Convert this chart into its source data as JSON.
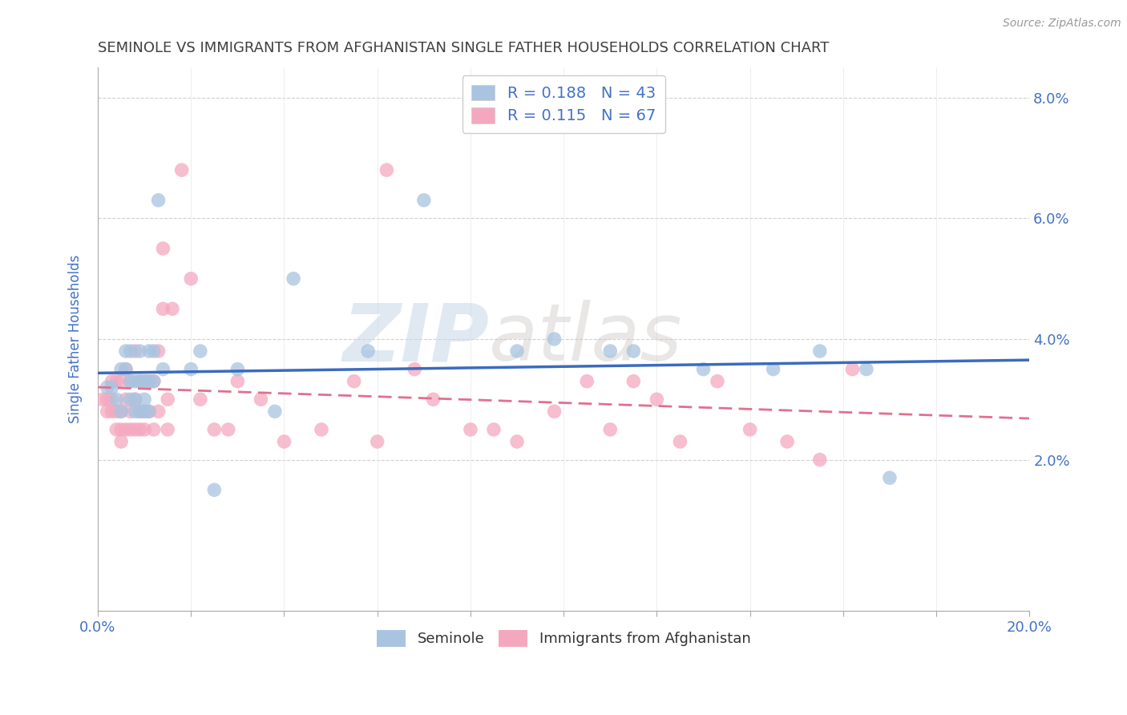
{
  "title": "SEMINOLE VS IMMIGRANTS FROM AFGHANISTAN SINGLE FATHER HOUSEHOLDS CORRELATION CHART",
  "source": "Source: ZipAtlas.com",
  "ylabel": "Single Father Households",
  "xlim": [
    0.0,
    0.2
  ],
  "ylim": [
    -0.005,
    0.085
  ],
  "x_ticks": [
    0.0,
    0.02,
    0.04,
    0.06,
    0.08,
    0.1,
    0.12,
    0.14,
    0.16,
    0.18,
    0.2
  ],
  "y_ticks": [
    0.0,
    0.02,
    0.04,
    0.06,
    0.08
  ],
  "blue_R": 0.188,
  "blue_N": 43,
  "pink_R": 0.115,
  "pink_N": 67,
  "blue_color": "#a8c4e0",
  "pink_color": "#f4a8c0",
  "blue_line_color": "#3a6bbf",
  "pink_line_color": "#e07090",
  "legend_blue_label": "Seminole",
  "legend_pink_label": "Immigrants from Afghanistan",
  "watermark_zip": "ZIP",
  "watermark_atlas": "atlas",
  "background_color": "#ffffff",
  "grid_color": "#d0d0d0",
  "title_color": "#404040",
  "tick_label_color": "#4472c4",
  "blue_scatter_x": [
    0.002,
    0.003,
    0.004,
    0.005,
    0.005,
    0.006,
    0.006,
    0.007,
    0.007,
    0.007,
    0.008,
    0.008,
    0.008,
    0.009,
    0.009,
    0.009,
    0.01,
    0.01,
    0.01,
    0.011,
    0.011,
    0.011,
    0.012,
    0.012,
    0.013,
    0.014,
    0.02,
    0.022,
    0.025,
    0.03,
    0.038,
    0.042,
    0.058,
    0.07,
    0.09,
    0.098,
    0.11,
    0.115,
    0.13,
    0.145,
    0.155,
    0.165,
    0.17
  ],
  "blue_scatter_y": [
    0.032,
    0.032,
    0.03,
    0.028,
    0.035,
    0.035,
    0.038,
    0.03,
    0.033,
    0.038,
    0.028,
    0.03,
    0.033,
    0.028,
    0.033,
    0.038,
    0.028,
    0.03,
    0.033,
    0.028,
    0.033,
    0.038,
    0.033,
    0.038,
    0.063,
    0.035,
    0.035,
    0.038,
    0.015,
    0.035,
    0.028,
    0.05,
    0.038,
    0.063,
    0.038,
    0.04,
    0.038,
    0.038,
    0.035,
    0.035,
    0.038,
    0.035,
    0.017
  ],
  "pink_scatter_x": [
    0.001,
    0.002,
    0.002,
    0.003,
    0.003,
    0.003,
    0.004,
    0.004,
    0.004,
    0.005,
    0.005,
    0.005,
    0.005,
    0.006,
    0.006,
    0.006,
    0.007,
    0.007,
    0.007,
    0.008,
    0.008,
    0.008,
    0.009,
    0.009,
    0.009,
    0.01,
    0.01,
    0.01,
    0.011,
    0.011,
    0.012,
    0.012,
    0.013,
    0.013,
    0.014,
    0.014,
    0.015,
    0.015,
    0.016,
    0.018,
    0.02,
    0.022,
    0.025,
    0.028,
    0.03,
    0.035,
    0.04,
    0.048,
    0.055,
    0.06,
    0.062,
    0.068,
    0.072,
    0.08,
    0.085,
    0.09,
    0.098,
    0.105,
    0.11,
    0.115,
    0.12,
    0.125,
    0.133,
    0.14,
    0.148,
    0.155,
    0.162
  ],
  "pink_scatter_y": [
    0.03,
    0.028,
    0.03,
    0.028,
    0.03,
    0.033,
    0.025,
    0.028,
    0.033,
    0.023,
    0.025,
    0.028,
    0.033,
    0.025,
    0.03,
    0.035,
    0.025,
    0.028,
    0.033,
    0.025,
    0.03,
    0.038,
    0.025,
    0.028,
    0.033,
    0.025,
    0.028,
    0.033,
    0.028,
    0.033,
    0.025,
    0.033,
    0.028,
    0.038,
    0.045,
    0.055,
    0.025,
    0.03,
    0.045,
    0.068,
    0.05,
    0.03,
    0.025,
    0.025,
    0.033,
    0.03,
    0.023,
    0.025,
    0.033,
    0.023,
    0.068,
    0.035,
    0.03,
    0.025,
    0.025,
    0.023,
    0.028,
    0.033,
    0.025,
    0.033,
    0.03,
    0.023,
    0.033,
    0.025,
    0.023,
    0.02,
    0.035
  ]
}
